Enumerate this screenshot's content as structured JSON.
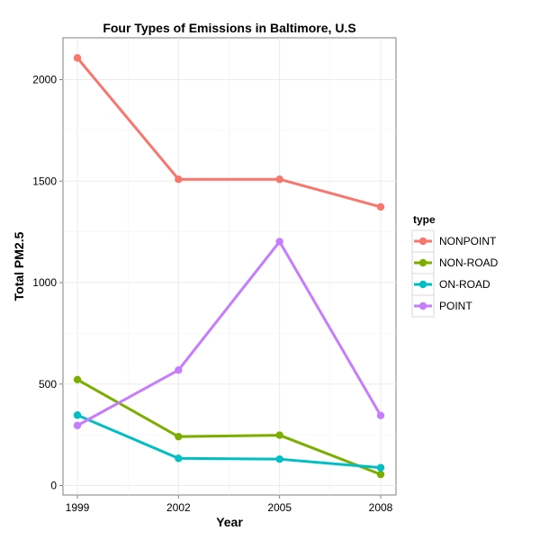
{
  "chart_data": {
    "type": "line",
    "title": "Four Types of Emissions in Baltimore, U.S",
    "xlabel": "Year",
    "ylabel": "Total PM2.5",
    "x": [
      1999,
      2002,
      2005,
      2008
    ],
    "xlim": [
      1999,
      2008
    ],
    "ylim": [
      0,
      2200
    ],
    "xticks": [
      1999,
      2002,
      2005,
      2008
    ],
    "yticks": [
      0,
      500,
      1000,
      1500,
      2000
    ],
    "grid": true,
    "legend": {
      "title": "type",
      "position": "right"
    },
    "series": [
      {
        "name": "NONPOINT",
        "color": "#F8766D",
        "values": [
          2107,
          1509,
          1509,
          1373
        ]
      },
      {
        "name": "NON-ROAD",
        "color": "#7CAE00",
        "values": [
          522,
          241,
          248,
          55
        ]
      },
      {
        "name": "ON-ROAD",
        "color": "#00BFC4",
        "values": [
          347,
          134,
          130,
          88
        ]
      },
      {
        "name": "POINT",
        "color": "#C77CFF",
        "values": [
          296,
          569,
          1202,
          345
        ]
      }
    ]
  }
}
